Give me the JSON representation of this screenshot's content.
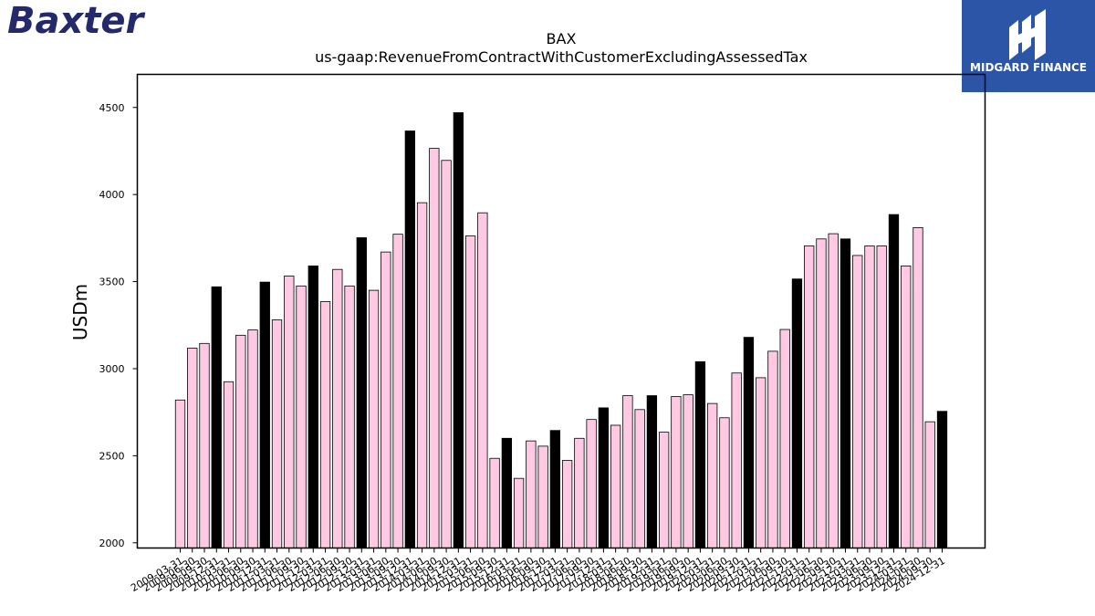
{
  "logo_left": {
    "text": "Baxter",
    "color": "#23296b"
  },
  "logo_right": {
    "text": "MIDGARD FINANCE",
    "color": "#2c55a8"
  },
  "chart_data": {
    "type": "bar",
    "title": "BAX",
    "subtitle": "us-gaap:RevenueFromContractWithCustomerExcludingAssessedTax",
    "ylabel": "USDm",
    "xlabel": "",
    "ylim": [
      1970,
      4690
    ],
    "yticks": [
      2000,
      2500,
      3000,
      3500,
      4000,
      4500
    ],
    "grid": false,
    "colors": {
      "quarter": "#ffc9e3",
      "year_end": "#000000",
      "edge": "#000000"
    },
    "categories": [
      "2009-03-31",
      "2009-06-30",
      "2009-09-30",
      "2009-12-31",
      "2010-03-31",
      "2010-06-30",
      "2010-09-30",
      "2010-12-31",
      "2011-03-31",
      "2011-06-30",
      "2011-09-30",
      "2011-12-31",
      "2012-03-31",
      "2012-06-30",
      "2012-09-30",
      "2012-12-31",
      "2013-03-31",
      "2013-06-30",
      "2013-09-30",
      "2013-12-31",
      "2014-03-31",
      "2014-06-30",
      "2014-09-30",
      "2014-12-31",
      "2015-03-31",
      "2015-06-30",
      "2015-09-30",
      "2015-12-31",
      "2016-03-31",
      "2016-06-30",
      "2016-09-30",
      "2016-12-31",
      "2017-03-31",
      "2017-06-30",
      "2017-09-30",
      "2017-12-31",
      "2018-03-31",
      "2018-06-30",
      "2018-09-30",
      "2018-12-31",
      "2019-03-31",
      "2019-06-30",
      "2019-09-30",
      "2019-12-31",
      "2020-03-31",
      "2020-06-30",
      "2020-09-30",
      "2020-12-31",
      "2021-03-31",
      "2021-06-30",
      "2021-09-30",
      "2021-12-31",
      "2022-03-31",
      "2022-06-30",
      "2022-09-30",
      "2022-12-31",
      "2023-03-31",
      "2023-06-30",
      "2023-09-30",
      "2023-12-31",
      "2024-03-31",
      "2024-06-30",
      "2024-09-30",
      "2024-12-31"
    ],
    "values": [
      2820,
      3118,
      3145,
      3470,
      2925,
      3192,
      3222,
      3497,
      3280,
      3532,
      3475,
      3590,
      3385,
      3570,
      3475,
      3752,
      3450,
      3670,
      3772,
      4365,
      3953,
      4265,
      4196,
      4470,
      3762,
      3895,
      2485,
      2600,
      2370,
      2585,
      2555,
      2645,
      2473,
      2600,
      2708,
      2775,
      2675,
      2845,
      2765,
      2845,
      2635,
      2840,
      2850,
      3040,
      2800,
      2718,
      2975,
      3180,
      2948,
      3100,
      3225,
      3515,
      3705,
      3745,
      3775,
      3745,
      3650,
      3705,
      3705,
      3885,
      3590,
      3810,
      2695,
      2755
    ],
    "highlight": [
      false,
      false,
      false,
      true,
      false,
      false,
      false,
      true,
      false,
      false,
      false,
      true,
      false,
      false,
      false,
      true,
      false,
      false,
      false,
      true,
      false,
      false,
      false,
      true,
      false,
      false,
      false,
      true,
      false,
      false,
      false,
      true,
      false,
      false,
      false,
      true,
      false,
      false,
      false,
      true,
      false,
      false,
      false,
      true,
      false,
      false,
      false,
      true,
      false,
      false,
      false,
      true,
      false,
      false,
      false,
      true,
      false,
      false,
      false,
      true,
      false,
      false,
      false,
      true
    ]
  }
}
